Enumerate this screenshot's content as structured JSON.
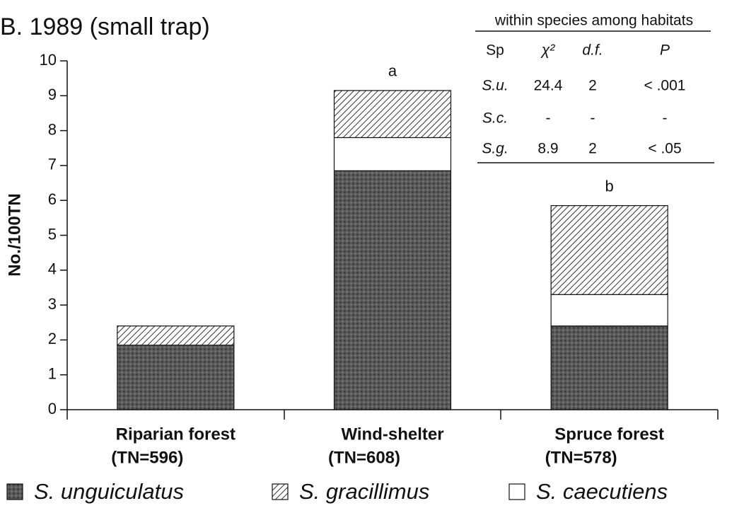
{
  "chart_data": {
    "type": "stacked_bar",
    "title": "B. 1989 (small trap)",
    "y_label": "No./100TN",
    "categories": [
      "Riparian forest",
      "Wind-shelter",
      "Spruce forest"
    ],
    "category_notes": [
      "(TN=596)",
      "(TN=608)",
      "(TN=578)"
    ],
    "series": [
      {
        "name": "S. unguiculatus",
        "color": "#5a5a5a",
        "pattern": "dots",
        "values": [
          1.85,
          6.85,
          2.4
        ]
      },
      {
        "name": "S. gracillimus",
        "color": "#333333",
        "pattern": "hatch",
        "values": [
          0.55,
          1.35,
          2.55
        ]
      },
      {
        "name": "S. caecutiens",
        "color": "#ffffff",
        "pattern": "solid",
        "values": [
          0,
          0.95,
          0.9
        ]
      }
    ],
    "ylim": [
      0,
      10
    ],
    "yticks": [
      0,
      1,
      2,
      3,
      4,
      5,
      6,
      7,
      8,
      9,
      10
    ],
    "annotations": [
      {
        "text": "a",
        "x": "Wind-shelter"
      },
      {
        "text": "b",
        "x": "Spruce forest"
      }
    ],
    "table": {
      "title": "within species among habitats",
      "header": [
        "Sp",
        "χ²",
        "d.f.",
        "P"
      ],
      "rows": [
        [
          "S.u.",
          "24.4",
          "2",
          "< .001"
        ],
        [
          "S.c.",
          "-",
          "-",
          "-"
        ],
        [
          "S.g.",
          "8.9",
          "2",
          "< .05"
        ]
      ]
    }
  }
}
